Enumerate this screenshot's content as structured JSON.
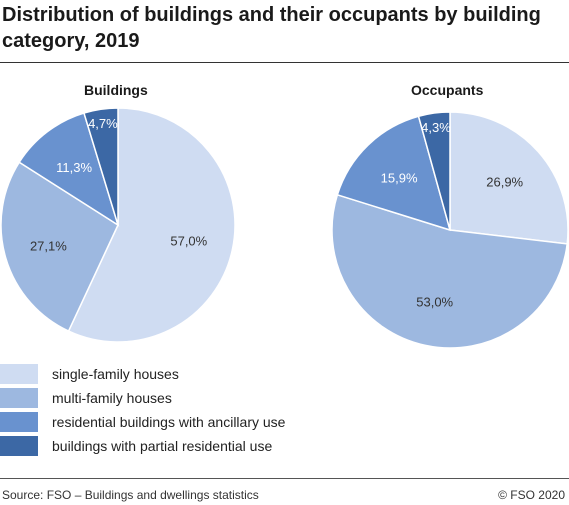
{
  "title": "Distribution of buildings and their occupants by building category, 2019",
  "footer": {
    "source": "Source: FSO – Buildings and dwellings statistics",
    "copyright": "© FSO 2020"
  },
  "colors": {
    "single_family": "#cfdcf2",
    "multi_family": "#9db8e0",
    "ancillary": "#6992cf",
    "partial": "#3c68a5",
    "label_dark": "#333333",
    "label_light": "#ffffff"
  },
  "legend": [
    {
      "label": "single-family houses",
      "color_key": "single_family"
    },
    {
      "label": "multi-family houses",
      "color_key": "multi_family"
    },
    {
      "label": "residential buildings with ancillary use",
      "color_key": "ancillary"
    },
    {
      "label": "buildings with partial residential use",
      "color_key": "partial"
    }
  ],
  "chart_data": [
    {
      "type": "pie",
      "title": "Buildings",
      "slices": [
        {
          "name": "single-family houses",
          "value": 57.0,
          "label": "57,0%"
        },
        {
          "name": "multi-family houses",
          "value": 27.1,
          "label": "27,1%"
        },
        {
          "name": "residential buildings with ancillary use",
          "value": 11.3,
          "label": "11,3%"
        },
        {
          "name": "buildings with partial residential use",
          "value": 4.7,
          "label": "4,7%"
        }
      ]
    },
    {
      "type": "pie",
      "title": "Occupants",
      "slices": [
        {
          "name": "single-family houses",
          "value": 26.9,
          "label": "26,9%"
        },
        {
          "name": "multi-family houses",
          "value": 53.0,
          "label": "53,0%"
        },
        {
          "name": "residential buildings with ancillary use",
          "value": 15.9,
          "label": "15,9%"
        },
        {
          "name": "buildings with partial residential use",
          "value": 4.3,
          "label": "4,3%"
        }
      ]
    }
  ]
}
